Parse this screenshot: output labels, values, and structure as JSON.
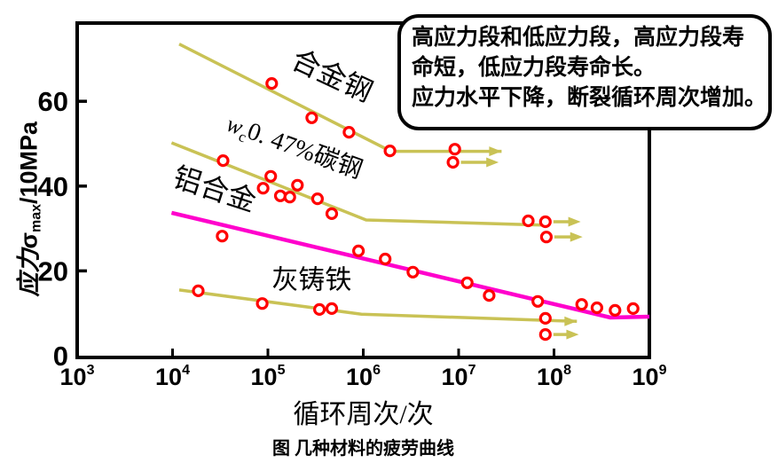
{
  "figure": {
    "caption": "图 几种材料的疲劳曲线"
  },
  "annotation": {
    "lines": [
      "高应力段和低应力段，高应力段寿",
      "命短，低应力段寿命长。",
      "应力水平下降，断裂循环周次增加。"
    ]
  },
  "axes": {
    "x_label": "循环周次/次",
    "y_label": {
      "zh": "应力",
      "sigma": "σ",
      "sub": "max",
      "unit": "/10MPa"
    },
    "x_tick_base": "10",
    "x_tick_exponents": [
      3,
      4,
      5,
      6,
      7,
      8,
      9
    ],
    "y_ticks": [
      0,
      20,
      40,
      60
    ]
  },
  "chart_data": {
    "type": "line",
    "title": "图 几种材料的疲劳曲线",
    "xlabel": "循环周次/次",
    "ylabel": "应力σmax/10MPa",
    "x_scale": "log10",
    "xlim_log10": [
      3,
      9
    ],
    "ylim": [
      0,
      78
    ],
    "grid": false,
    "legend": "labels-on-curves",
    "point_color": "#ff0000",
    "series": [
      {
        "id": "alloy-steel",
        "name": "合金钢",
        "color": "#c9c255",
        "line_width": 3.5,
        "line_log_n_value": [
          [
            4.07,
            73.5
          ],
          [
            6.29,
            48.2
          ],
          [
            7.45,
            48.2
          ]
        ],
        "line_end_arrow": true,
        "points_log_n_value": [
          [
            5.04,
            64.2
          ],
          [
            5.46,
            56.1
          ],
          [
            5.85,
            52.7
          ],
          [
            6.28,
            48.3
          ],
          [
            6.96,
            48.7
          ]
        ],
        "runout_arrows": [
          {
            "log_n": 6.94,
            "value": 45.6,
            "arrow_to_log_n": 7.42
          }
        ],
        "label": {
          "text": "合金钢",
          "log_n": 5.63,
          "value": 64.0,
          "angle_deg": 25,
          "font_px": 32
        }
      },
      {
        "id": "carbon-steel",
        "name": "wc0.47%碳钢",
        "color": "#c9c255",
        "line_width": 3.5,
        "line_log_n_value": [
          [
            3.99,
            50.2
          ],
          [
            6.03,
            32.0
          ],
          [
            7.88,
            30.8
          ]
        ],
        "line_end_arrow": false,
        "points_log_n_value": [
          [
            4.53,
            46.0
          ],
          [
            4.95,
            39.5
          ],
          [
            5.03,
            42.3
          ],
          [
            5.13,
            37.7
          ],
          [
            5.23,
            37.4
          ],
          [
            5.31,
            40.2
          ],
          [
            5.52,
            37.0
          ],
          [
            5.67,
            33.5
          ],
          [
            7.73,
            31.8
          ]
        ],
        "runout_arrows": [
          {
            "log_n": 7.91,
            "value": 31.6,
            "arrow_to_log_n": 8.28
          },
          {
            "log_n": 7.92,
            "value": 28.0,
            "arrow_to_log_n": 8.3
          }
        ],
        "label": {
          "pre": "w",
          "sub": "c",
          "rest": "0. 47%碳钢",
          "text": "wc0. 47%碳钢",
          "log_n": 5.25,
          "value": 47.5,
          "angle_deg": 20,
          "font_px": 28
        }
      },
      {
        "id": "aluminum-alloy",
        "name": "铝合金",
        "color": "#ff00cc",
        "line_width": 4.5,
        "line_log_n_value": [
          [
            3.99,
            33.7
          ],
          [
            8.59,
            9.0
          ],
          [
            9.0,
            9.2
          ]
        ],
        "line_end_arrow": false,
        "points_log_n_value": [
          [
            4.52,
            28.2
          ],
          [
            5.95,
            24.7
          ],
          [
            6.23,
            22.8
          ],
          [
            6.52,
            19.7
          ],
          [
            7.09,
            17.2
          ],
          [
            7.32,
            14.2
          ],
          [
            7.83,
            12.8
          ],
          [
            8.29,
            12.1
          ],
          [
            8.45,
            11.3
          ],
          [
            8.64,
            10.7
          ],
          [
            8.83,
            11.1
          ]
        ],
        "runout_arrows": [],
        "label": {
          "text": "铝合金",
          "log_n": 4.41,
          "value": 37.1,
          "angle_deg": 18,
          "font_px": 32
        }
      },
      {
        "id": "gray-cast-iron",
        "name": "灰铸铁",
        "color": "#c9c255",
        "line_width": 3.5,
        "line_log_n_value": [
          [
            4.07,
            15.5
          ],
          [
            5.98,
            9.8
          ],
          [
            8.24,
            8.1
          ]
        ],
        "line_end_arrow": true,
        "points_log_n_value": [
          [
            4.27,
            15.3
          ],
          [
            4.94,
            12.3
          ],
          [
            5.54,
            10.9
          ],
          [
            5.67,
            11.1
          ],
          [
            7.91,
            8.8
          ]
        ],
        "runout_arrows": [
          {
            "log_n": 7.91,
            "value": 5.0,
            "arrow_to_log_n": 8.26
          }
        ],
        "label": {
          "text": "灰铸铁",
          "log_n": 5.46,
          "value": 15.8,
          "angle_deg": 0,
          "font_px": 30
        }
      }
    ]
  }
}
